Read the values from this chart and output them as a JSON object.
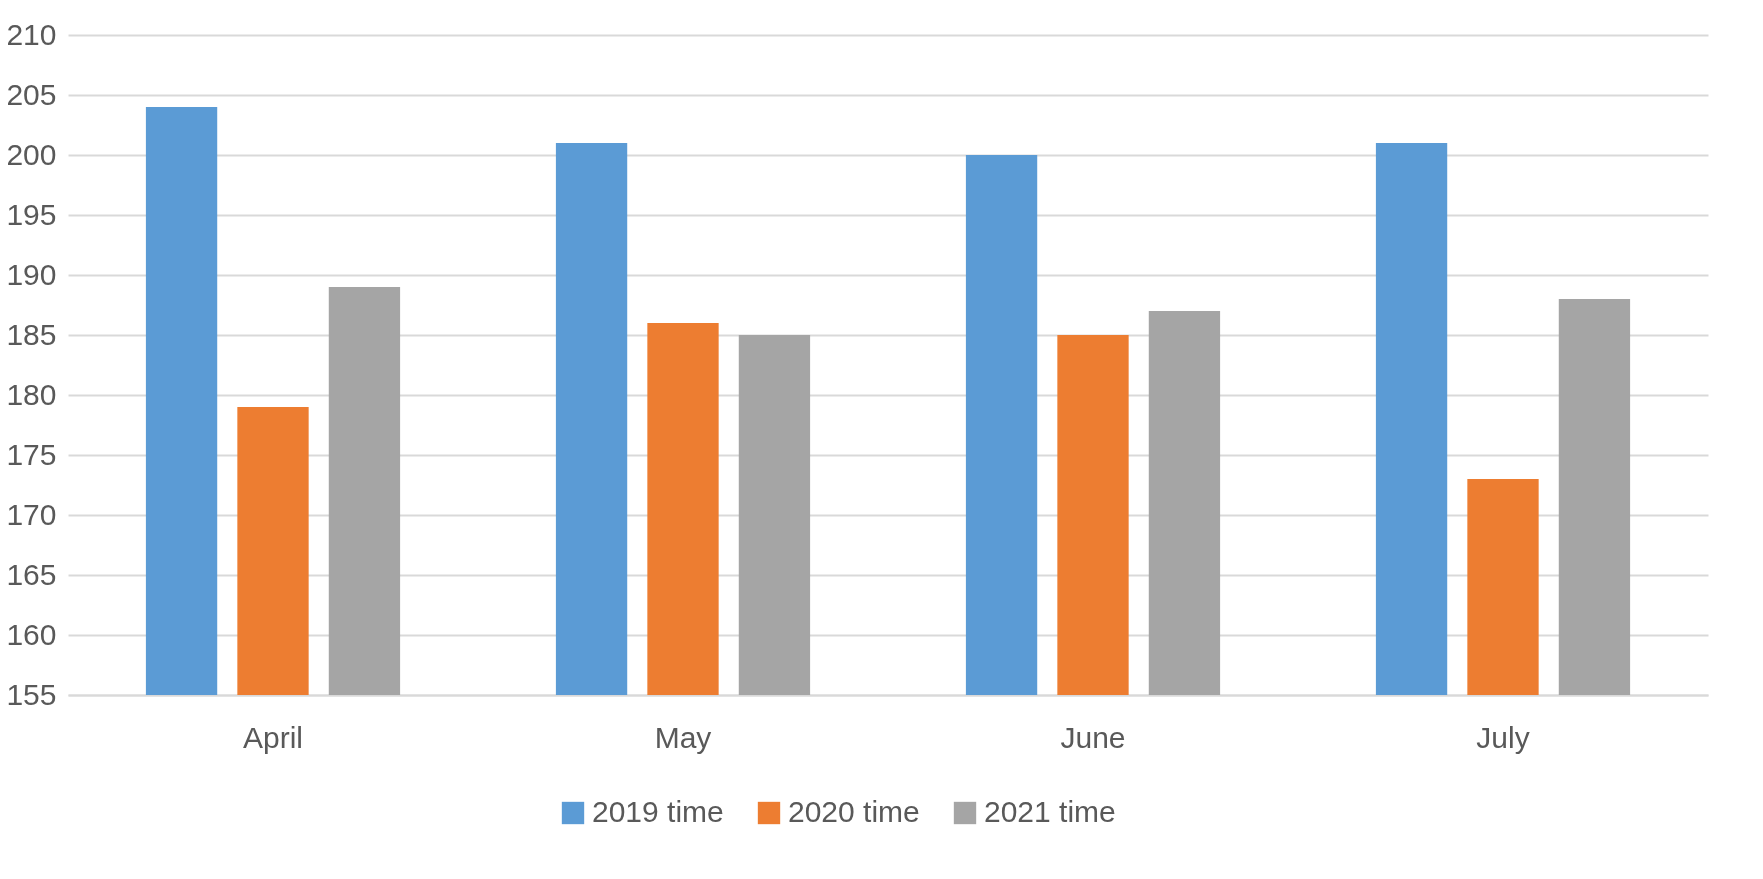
{
  "chart_data": {
    "type": "bar",
    "categories": [
      "April",
      "May",
      "June",
      "July"
    ],
    "series": [
      {
        "name": "2019 time",
        "color": "#5b9bd5",
        "values": [
          204,
          201,
          200,
          201
        ]
      },
      {
        "name": "2020 time",
        "color": "#ed7d31",
        "values": [
          179,
          186,
          185,
          173
        ]
      },
      {
        "name": "2021 time",
        "color": "#a5a5a5",
        "values": [
          189,
          185,
          187,
          188
        ]
      }
    ],
    "ylim": [
      155,
      210
    ],
    "yticks": [
      155,
      160,
      165,
      170,
      175,
      180,
      185,
      190,
      195,
      200,
      205,
      210
    ],
    "grid": "y",
    "legend": "bottom"
  }
}
